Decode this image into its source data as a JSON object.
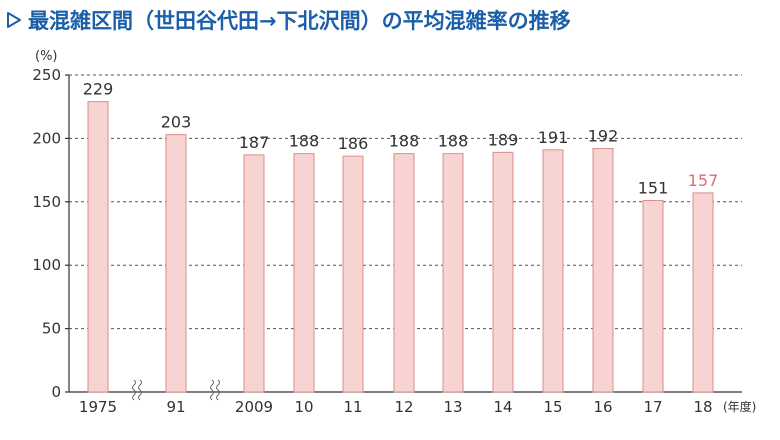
{
  "title": "最混雑区間（世田谷代田→下北沢間）の平均混雑率の推移",
  "colors": {
    "title": "#1b5fa8",
    "bar_fill": "#f7d3d1",
    "bar_stroke": "#d98f8b",
    "highlight_label": "#e26a78",
    "axis": "#333333",
    "grid": "#555555"
  },
  "chart_data": {
    "type": "bar",
    "unit_label": "(%)",
    "x_unit_label": "(年度)",
    "categories": [
      "1975",
      "91",
      "2009",
      "10",
      "11",
      "12",
      "13",
      "14",
      "15",
      "16",
      "17",
      "18"
    ],
    "values": [
      229,
      203,
      187,
      188,
      186,
      188,
      188,
      189,
      191,
      192,
      151,
      157
    ],
    "highlight_index": 11,
    "axis_breaks_after": [
      "1975",
      "91"
    ],
    "ylim": [
      0,
      250
    ],
    "yticks": [
      0,
      50,
      100,
      150,
      200,
      250
    ],
    "grid": "horizontal dashed"
  }
}
